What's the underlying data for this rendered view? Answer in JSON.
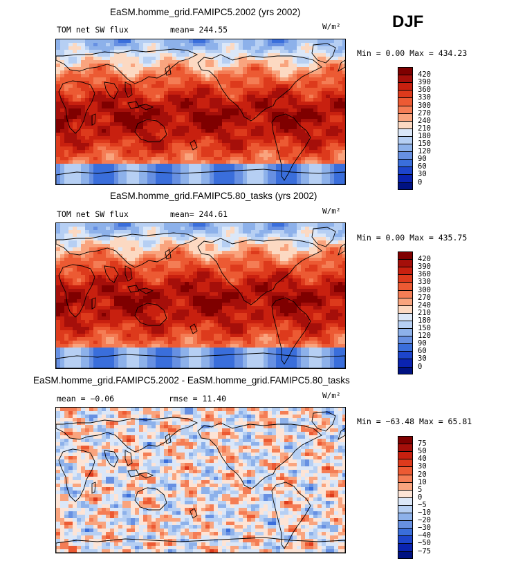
{
  "season": "DJF",
  "panels": [
    {
      "title": "EaSM.homme_grid.FAMIPC5.2002 (yrs 2002)",
      "variable": "TOM net SW flux",
      "stat": "mean= 244.55",
      "units": "W/m²",
      "minmax": "Min =   0.00 Max = 434.23",
      "map_type": "absolute",
      "colorbar": {
        "labels": [
          "420",
          "390",
          "360",
          "330",
          "300",
          "270",
          "240",
          "210",
          "180",
          "150",
          "120",
          "90",
          "60",
          "30",
          "0"
        ],
        "colors": [
          "#7f0000",
          "#a50f0a",
          "#c8200f",
          "#dd3a1c",
          "#ec5a33",
          "#f47d55",
          "#f9a47e",
          "#fcd9c2",
          "#dbe7f8",
          "#b6cff3",
          "#8db1ea",
          "#6790e2",
          "#3a6edb",
          "#1d45cc",
          "#0a23b0",
          "#001282"
        ]
      }
    },
    {
      "title": "EaSM.homme_grid.FAMIPC5.80_tasks (yrs 2002)",
      "variable": "TOM net SW flux",
      "stat": "mean= 244.61",
      "units": "W/m²",
      "minmax": "Min =   0.00 Max = 435.75",
      "map_type": "absolute",
      "colorbar": {
        "labels": [
          "420",
          "390",
          "360",
          "330",
          "300",
          "270",
          "240",
          "210",
          "180",
          "150",
          "120",
          "90",
          "60",
          "30",
          "0"
        ],
        "colors": [
          "#7f0000",
          "#a50f0a",
          "#c8200f",
          "#dd3a1c",
          "#ec5a33",
          "#f47d55",
          "#f9a47e",
          "#fcd9c2",
          "#dbe7f8",
          "#b6cff3",
          "#8db1ea",
          "#6790e2",
          "#3a6edb",
          "#1d45cc",
          "#0a23b0",
          "#001282"
        ]
      }
    },
    {
      "title": "EaSM.homme_grid.FAMIPC5.2002 - EaSM.homme_grid.FAMIPC5.80_tasks",
      "variable": "",
      "stat": "mean =  −0.06",
      "rmse": "rmse =  11.40",
      "units": "W/m²",
      "minmax": "Min = −63.48 Max =  65.81",
      "map_type": "difference",
      "colorbar": {
        "labels": [
          "75",
          "50",
          "40",
          "30",
          "20",
          "10",
          "5",
          "0",
          "−5",
          "−10",
          "−20",
          "−30",
          "−40",
          "−50",
          "−75"
        ],
        "colors": [
          "#7f0000",
          "#a50f0a",
          "#c8200f",
          "#dd3a1c",
          "#ec5a33",
          "#f47d55",
          "#f9a47e",
          "#fde4d6",
          "#dbe7f8",
          "#b6cff3",
          "#8db1ea",
          "#6790e2",
          "#3a6edb",
          "#1d45cc",
          "#0a23b0",
          "#001282"
        ]
      }
    }
  ]
}
